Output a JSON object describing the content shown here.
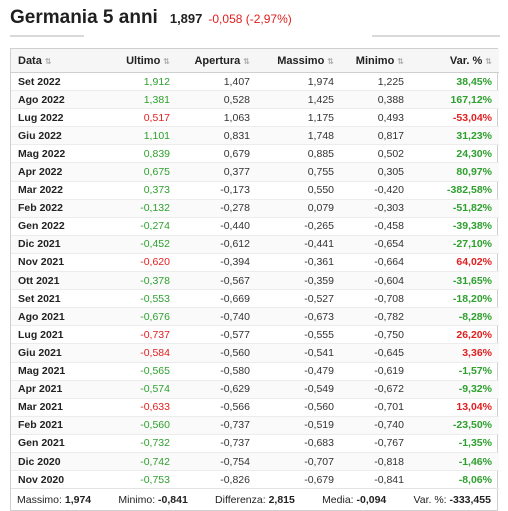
{
  "header": {
    "title": "Germania 5 anni",
    "price": "1,897",
    "change": "-0,058 (-2,97%)"
  },
  "colors": {
    "positive": "#2ea02e",
    "negative": "#e02020"
  },
  "columns": [
    {
      "label": "Data",
      "sort_icon": "sort-icon"
    },
    {
      "label": "Ultimo",
      "sort_icon": "sort-icon"
    },
    {
      "label": "Apertura",
      "sort_icon": "sort-icon"
    },
    {
      "label": "Massimo",
      "sort_icon": "sort-icon"
    },
    {
      "label": "Minimo",
      "sort_icon": "sort-icon"
    },
    {
      "label": "Var. %",
      "sort_icon": "sort-icon"
    }
  ],
  "rows": [
    {
      "date": "Set 2022",
      "last": "1,912",
      "last_dir": "pos",
      "open": "1,407",
      "high": "1,974",
      "low": "1,225",
      "var": "38,45%",
      "var_dir": "pos"
    },
    {
      "date": "Ago 2022",
      "last": "1,381",
      "last_dir": "pos",
      "open": "0,528",
      "high": "1,425",
      "low": "0,388",
      "var": "167,12%",
      "var_dir": "pos"
    },
    {
      "date": "Lug 2022",
      "last": "0,517",
      "last_dir": "neg",
      "open": "1,063",
      "high": "1,175",
      "low": "0,493",
      "var": "-53,04%",
      "var_dir": "neg"
    },
    {
      "date": "Giu 2022",
      "last": "1,101",
      "last_dir": "pos",
      "open": "0,831",
      "high": "1,748",
      "low": "0,817",
      "var": "31,23%",
      "var_dir": "pos"
    },
    {
      "date": "Mag 2022",
      "last": "0,839",
      "last_dir": "pos",
      "open": "0,679",
      "high": "0,885",
      "low": "0,502",
      "var": "24,30%",
      "var_dir": "pos"
    },
    {
      "date": "Apr 2022",
      "last": "0,675",
      "last_dir": "pos",
      "open": "0,377",
      "high": "0,755",
      "low": "0,305",
      "var": "80,97%",
      "var_dir": "pos"
    },
    {
      "date": "Mar 2022",
      "last": "0,373",
      "last_dir": "pos",
      "open": "-0,173",
      "high": "0,550",
      "low": "-0,420",
      "var": "-382,58%",
      "var_dir": "pos"
    },
    {
      "date": "Feb 2022",
      "last": "-0,132",
      "last_dir": "pos",
      "open": "-0,278",
      "high": "0,079",
      "low": "-0,303",
      "var": "-51,82%",
      "var_dir": "pos"
    },
    {
      "date": "Gen 2022",
      "last": "-0,274",
      "last_dir": "pos",
      "open": "-0,440",
      "high": "-0,265",
      "low": "-0,458",
      "var": "-39,38%",
      "var_dir": "pos"
    },
    {
      "date": "Dic 2021",
      "last": "-0,452",
      "last_dir": "pos",
      "open": "-0,612",
      "high": "-0,441",
      "low": "-0,654",
      "var": "-27,10%",
      "var_dir": "pos"
    },
    {
      "date": "Nov 2021",
      "last": "-0,620",
      "last_dir": "neg",
      "open": "-0,394",
      "high": "-0,361",
      "low": "-0,664",
      "var": "64,02%",
      "var_dir": "neg"
    },
    {
      "date": "Ott 2021",
      "last": "-0,378",
      "last_dir": "pos",
      "open": "-0,567",
      "high": "-0,359",
      "low": "-0,604",
      "var": "-31,65%",
      "var_dir": "pos"
    },
    {
      "date": "Set 2021",
      "last": "-0,553",
      "last_dir": "pos",
      "open": "-0,669",
      "high": "-0,527",
      "low": "-0,708",
      "var": "-18,20%",
      "var_dir": "pos"
    },
    {
      "date": "Ago 2021",
      "last": "-0,676",
      "last_dir": "pos",
      "open": "-0,740",
      "high": "-0,673",
      "low": "-0,782",
      "var": "-8,28%",
      "var_dir": "pos"
    },
    {
      "date": "Lug 2021",
      "last": "-0,737",
      "last_dir": "neg",
      "open": "-0,577",
      "high": "-0,555",
      "low": "-0,750",
      "var": "26,20%",
      "var_dir": "neg"
    },
    {
      "date": "Giu 2021",
      "last": "-0,584",
      "last_dir": "neg",
      "open": "-0,560",
      "high": "-0,541",
      "low": "-0,645",
      "var": "3,36%",
      "var_dir": "neg"
    },
    {
      "date": "Mag 2021",
      "last": "-0,565",
      "last_dir": "pos",
      "open": "-0,580",
      "high": "-0,479",
      "low": "-0,619",
      "var": "-1,57%",
      "var_dir": "pos"
    },
    {
      "date": "Apr 2021",
      "last": "-0,574",
      "last_dir": "pos",
      "open": "-0,629",
      "high": "-0,549",
      "low": "-0,672",
      "var": "-9,32%",
      "var_dir": "pos"
    },
    {
      "date": "Mar 2021",
      "last": "-0,633",
      "last_dir": "neg",
      "open": "-0,566",
      "high": "-0,560",
      "low": "-0,701",
      "var": "13,04%",
      "var_dir": "neg"
    },
    {
      "date": "Feb 2021",
      "last": "-0,560",
      "last_dir": "pos",
      "open": "-0,737",
      "high": "-0,519",
      "low": "-0,740",
      "var": "-23,50%",
      "var_dir": "pos"
    },
    {
      "date": "Gen 2021",
      "last": "-0,732",
      "last_dir": "pos",
      "open": "-0,737",
      "high": "-0,683",
      "low": "-0,767",
      "var": "-1,35%",
      "var_dir": "pos"
    },
    {
      "date": "Dic 2020",
      "last": "-0,742",
      "last_dir": "pos",
      "open": "-0,754",
      "high": "-0,707",
      "low": "-0,818",
      "var": "-1,46%",
      "var_dir": "pos"
    },
    {
      "date": "Nov 2020",
      "last": "-0,753",
      "last_dir": "pos",
      "open": "-0,826",
      "high": "-0,679",
      "low": "-0,841",
      "var": "-8,06%",
      "var_dir": "pos"
    }
  ],
  "footer": {
    "max_label": "Massimo:",
    "max_value": "1,974",
    "min_label": "Minimo:",
    "min_value": "-0,841",
    "diff_label": "Differenza:",
    "diff_value": "2,815",
    "avg_label": "Media:",
    "avg_value": "-0,094",
    "var_label": "Var. %:",
    "var_value": "-333,455"
  }
}
